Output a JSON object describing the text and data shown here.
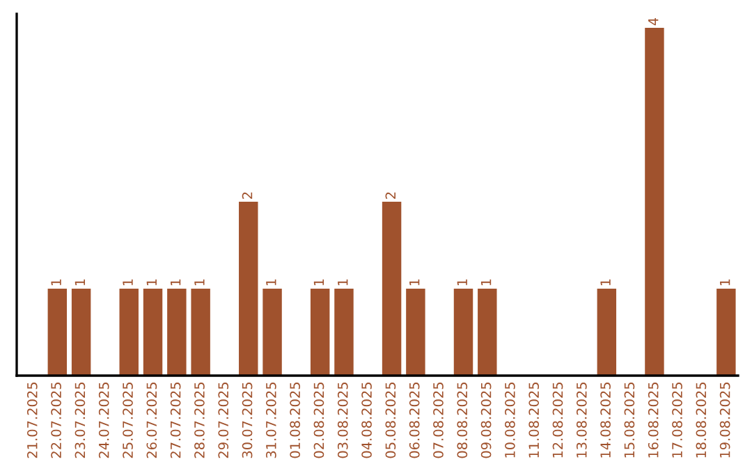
{
  "chart_data": {
    "type": "bar",
    "categories": [
      "21.07.2025",
      "22.07.2025",
      "23.07.2025",
      "24.07.2025",
      "25.07.2025",
      "26.07.2025",
      "27.07.2025",
      "28.07.2025",
      "29.07.2025",
      "30.07.2025",
      "31.07.2025",
      "01.08.2025",
      "02.08.2025",
      "03.08.2025",
      "04.08.2025",
      "05.08.2025",
      "06.08.2025",
      "07.08.2025",
      "08.08.2025",
      "09.08.2025",
      "10.08.2025",
      "11.08.2025",
      "12.08.2025",
      "13.08.2025",
      "14.08.2025",
      "15.08.2025",
      "16.08.2025",
      "17.08.2025",
      "18.08.2025",
      "19.08.2025"
    ],
    "values": [
      null,
      1,
      1,
      null,
      1,
      1,
      1,
      1,
      null,
      2,
      1,
      null,
      1,
      1,
      null,
      2,
      1,
      null,
      1,
      1,
      null,
      null,
      null,
      null,
      1,
      null,
      4,
      null,
      null,
      1
    ],
    "value_labels": [
      null,
      "1",
      "1",
      null,
      "1",
      "1",
      "1",
      "1",
      null,
      "2",
      "1",
      null,
      "1",
      "1",
      null,
      "2",
      "1",
      null,
      "1",
      "1",
      null,
      null,
      null,
      null,
      "1",
      null,
      "4",
      null,
      null,
      "1"
    ],
    "color": "#a0522d",
    "tick_labels": "x",
    "grid": false
  }
}
